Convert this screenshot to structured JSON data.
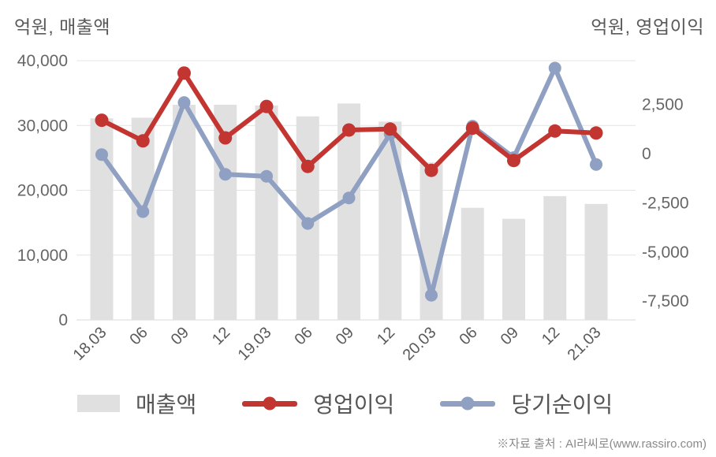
{
  "chart_data": {
    "type": "combo-bar-line",
    "categories": [
      "18.03",
      "06",
      "09",
      "12",
      "19.03",
      "06",
      "09",
      "12",
      "20.03",
      "06",
      "09",
      "12",
      "21.03"
    ],
    "series": [
      {
        "name": "매출액",
        "type": "bar",
        "axis": "left",
        "color": "#e0e0e0",
        "values": [
          31100,
          31200,
          33200,
          33200,
          33100,
          31400,
          33400,
          30600,
          24300,
          17300,
          15600,
          19100,
          17900
        ]
      },
      {
        "name": "영업이익",
        "type": "line",
        "axis": "right",
        "color": "#c23531",
        "values": [
          1700,
          650,
          4100,
          800,
          2400,
          -650,
          1200,
          1250,
          -850,
          1300,
          -350,
          1150,
          1050
        ]
      },
      {
        "name": "당기순이익",
        "type": "line",
        "axis": "right",
        "color": "#8fa0c3",
        "values": [
          -50,
          -2950,
          2600,
          -1050,
          -1150,
          -3550,
          -2250,
          1000,
          -7200,
          1400,
          -200,
          4350,
          -550
        ]
      }
    ],
    "left_axis": {
      "title": "억원, 매출액",
      "min": 0,
      "max": 40000,
      "ticks": [
        {
          "value": 40000,
          "label": "40,000"
        },
        {
          "value": 30000,
          "label": "30,000"
        },
        {
          "value": 20000,
          "label": "20,000"
        },
        {
          "value": 10000,
          "label": "10,000"
        },
        {
          "value": 0,
          "label": "0"
        }
      ]
    },
    "right_axis": {
      "title": "억원, 영업이익",
      "min": -7500,
      "max": 2500,
      "ticks": [
        {
          "value": 2500,
          "label": "2,500"
        },
        {
          "value": 0,
          "label": "0"
        },
        {
          "value": -2500,
          "label": "-2,500"
        },
        {
          "value": -5000,
          "label": "-5,000"
        },
        {
          "value": -7500,
          "label": "-7,500"
        }
      ]
    },
    "grid": true,
    "legend_position": "bottom"
  },
  "footer": {
    "source_text": "※자료 출처 : AI라씨로(www.rassiro.com)"
  }
}
